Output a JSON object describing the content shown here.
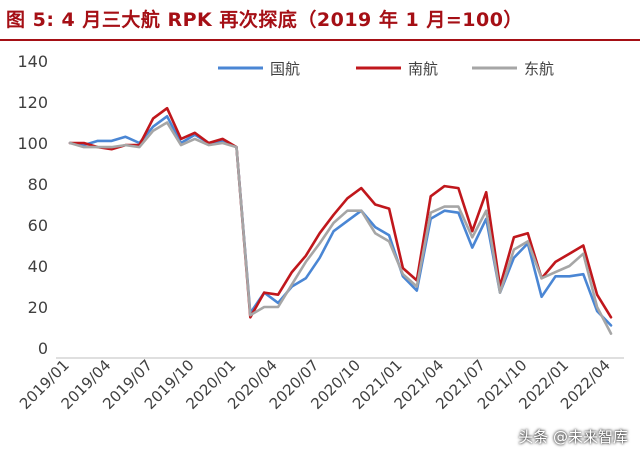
{
  "chart_data": {
    "type": "line",
    "title": "图 5:  4 月三大航 RPK 再次探底（2019 年 1 月=100）",
    "ylim": [
      0,
      140
    ],
    "yticks": [
      0,
      20,
      40,
      60,
      80,
      100,
      120,
      140
    ],
    "grid": false,
    "legend": "top",
    "x": [
      "2019/01",
      "2019/02",
      "2019/03",
      "2019/04",
      "2019/05",
      "2019/06",
      "2019/07",
      "2019/08",
      "2019/09",
      "2019/10",
      "2019/11",
      "2019/12",
      "2020/01",
      "2020/02",
      "2020/03",
      "2020/04",
      "2020/05",
      "2020/06",
      "2020/07",
      "2020/08",
      "2020/09",
      "2020/10",
      "2020/11",
      "2020/12",
      "2021/01",
      "2021/02",
      "2021/03",
      "2021/04",
      "2021/05",
      "2021/06",
      "2021/07",
      "2021/08",
      "2021/09",
      "2021/10",
      "2021/11",
      "2021/12",
      "2022/01",
      "2022/02",
      "2022/03",
      "2022/04"
    ],
    "xtick_labels": [
      "2019/01",
      "2019/04",
      "2019/07",
      "2019/10",
      "2020/01",
      "2020/04",
      "2020/07",
      "2020/10",
      "2021/01",
      "2021/04",
      "2021/07",
      "2021/10",
      "2022/01",
      "2022/04"
    ],
    "series": [
      {
        "name": "国航",
        "color": "#4a86d4",
        "values": [
          100,
          99,
          101,
          101,
          103,
          100,
          108,
          113,
          100,
          104,
          100,
          101,
          98,
          17,
          27,
          22,
          30,
          34,
          44,
          57,
          62,
          67,
          59,
          55,
          35,
          28,
          63,
          67,
          66,
          49,
          63,
          27,
          44,
          51,
          25,
          35,
          35,
          36,
          18,
          11
        ]
      },
      {
        "name": "南航",
        "color": "#c0171c",
        "values": [
          100,
          100,
          98,
          97,
          99,
          99,
          112,
          117,
          102,
          105,
          100,
          102,
          98,
          15,
          27,
          26,
          37,
          45,
          56,
          65,
          73,
          78,
          70,
          68,
          39,
          33,
          74,
          79,
          78,
          57,
          76,
          30,
          54,
          56,
          34,
          42,
          46,
          50,
          26,
          15
        ]
      },
      {
        "name": "东航",
        "color": "#a6a6a6",
        "values": [
          100,
          98,
          98,
          98,
          99,
          98,
          106,
          110,
          99,
          102,
          99,
          100,
          98,
          16,
          20,
          20,
          31,
          42,
          51,
          61,
          67,
          67,
          56,
          52,
          36,
          30,
          66,
          69,
          69,
          54,
          67,
          27,
          48,
          52,
          34,
          37,
          40,
          46,
          20,
          7
        ]
      }
    ]
  },
  "watermark": "头条 @未来智库"
}
